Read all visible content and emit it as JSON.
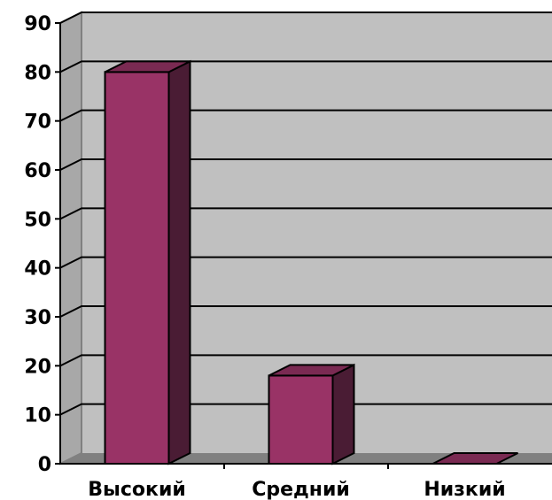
{
  "chart_data": {
    "type": "bar",
    "categories": [
      "Высокий",
      "Средний",
      "Низкий"
    ],
    "values": [
      80,
      18,
      0
    ],
    "ylim": [
      0,
      90
    ],
    "yticks": [
      0,
      10,
      20,
      30,
      40,
      50,
      60,
      70,
      80,
      90
    ],
    "grid": true,
    "legend": "none",
    "colors": {
      "bar_front": "#993366",
      "bar_side": "#4a1c34",
      "bar_top": "#7a2a52",
      "wall": "#c0c0c0",
      "wall_side": "#a8a8a8",
      "floor": "#808080"
    }
  }
}
